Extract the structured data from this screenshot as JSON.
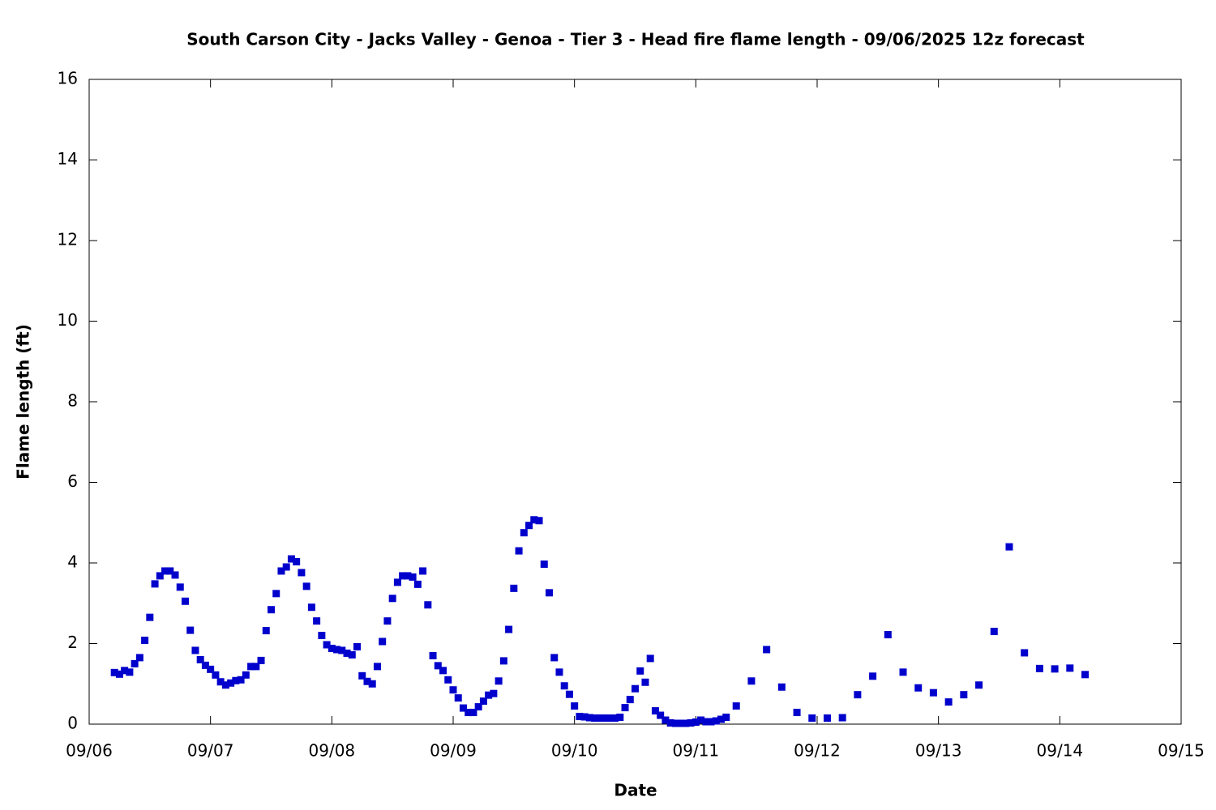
{
  "chart_data": {
    "type": "scatter",
    "title": "South Carson City - Jacks Valley - Genoa - Tier 3 - Head fire flame length - 09/06/2025 12z forecast",
    "x_label": "Date",
    "y_label": "Flame length (ft)",
    "color": "#0000cc",
    "xlim": [
      0,
      216
    ],
    "xticks": [
      {
        "value": 0,
        "label": "09/06"
      },
      {
        "value": 24,
        "label": "09/07"
      },
      {
        "value": 48,
        "label": "09/08"
      },
      {
        "value": 72,
        "label": "09/09"
      },
      {
        "value": 96,
        "label": "09/10"
      },
      {
        "value": 120,
        "label": "09/11"
      },
      {
        "value": 144,
        "label": "09/12"
      },
      {
        "value": 168,
        "label": "09/13"
      },
      {
        "value": 192,
        "label": "09/14"
      },
      {
        "value": 216,
        "label": "09/15"
      }
    ],
    "ylim": [
      0,
      16
    ],
    "yticks": [
      0,
      2,
      4,
      6,
      8,
      10,
      12,
      14,
      16
    ],
    "grid": false,
    "x": [
      5,
      6,
      7,
      8,
      9,
      10,
      11,
      12,
      13,
      14,
      15,
      16,
      17,
      18,
      19,
      20,
      21,
      22,
      23,
      24,
      25,
      26,
      27,
      28,
      29,
      30,
      31,
      32,
      33,
      34,
      35,
      36,
      37,
      38,
      39,
      40,
      41,
      42,
      43,
      44,
      45,
      46,
      47,
      48,
      49,
      50,
      51,
      52,
      53,
      54,
      55,
      56,
      57,
      58,
      59,
      60,
      61,
      62,
      63,
      64,
      65,
      66,
      67,
      68,
      69,
      70,
      71,
      72,
      73,
      74,
      75,
      76,
      77,
      78,
      79,
      80,
      81,
      82,
      83,
      84,
      85,
      86,
      87,
      88,
      89,
      90,
      91,
      92,
      93,
      94,
      95,
      96,
      97,
      98,
      99,
      100,
      101,
      102,
      103,
      104,
      105,
      106,
      107,
      108,
      109,
      110,
      111,
      112,
      113,
      114,
      115,
      116,
      117,
      118,
      119,
      120,
      121,
      122,
      123,
      124,
      125,
      126,
      128,
      131,
      134,
      137,
      140,
      143,
      146,
      149,
      152,
      155,
      158,
      161,
      164,
      167,
      170,
      173,
      176,
      179,
      182,
      185,
      188,
      191,
      194,
      197
    ],
    "values": [
      1.28,
      1.24,
      1.33,
      1.29,
      1.5,
      1.65,
      2.08,
      2.65,
      3.48,
      3.68,
      3.8,
      3.8,
      3.7,
      3.4,
      3.05,
      2.33,
      1.83,
      1.6,
      1.46,
      1.36,
      1.22,
      1.05,
      0.97,
      1.02,
      1.08,
      1.1,
      1.22,
      1.43,
      1.43,
      1.58,
      2.32,
      2.84,
      3.24,
      3.8,
      3.9,
      4.1,
      4.03,
      3.76,
      3.42,
      2.9,
      2.56,
      2.2,
      1.97,
      1.88,
      1.85,
      1.83,
      1.76,
      1.72,
      1.92,
      1.2,
      1.06,
      1.0,
      1.43,
      2.05,
      2.56,
      3.12,
      3.52,
      3.68,
      3.68,
      3.65,
      3.47,
      3.8,
      2.96,
      1.7,
      1.45,
      1.33,
      1.1,
      0.85,
      0.65,
      0.4,
      0.29,
      0.29,
      0.43,
      0.57,
      0.72,
      0.76,
      1.07,
      1.57,
      2.35,
      3.37,
      4.3,
      4.75,
      4.93,
      5.07,
      5.05,
      3.97,
      3.26,
      1.65,
      1.29,
      0.95,
      0.74,
      0.45,
      0.19,
      0.18,
      0.16,
      0.15,
      0.15,
      0.15,
      0.15,
      0.15,
      0.17,
      0.41,
      0.61,
      0.88,
      1.32,
      1.04,
      1.63,
      0.33,
      0.22,
      0.1,
      0.03,
      0.02,
      0.02,
      0.02,
      0.03,
      0.05,
      0.1,
      0.06,
      0.06,
      0.08,
      0.12,
      0.17,
      0.45,
      1.07,
      1.85,
      0.92,
      0.29,
      0.15,
      0.15,
      0.16,
      0.73,
      1.19,
      2.22,
      1.29,
      0.9,
      0.78,
      0.55,
      0.73,
      0.97,
      2.3,
      4.4,
      1.77,
      1.38,
      1.37,
      1.39,
      1.23
    ]
  }
}
